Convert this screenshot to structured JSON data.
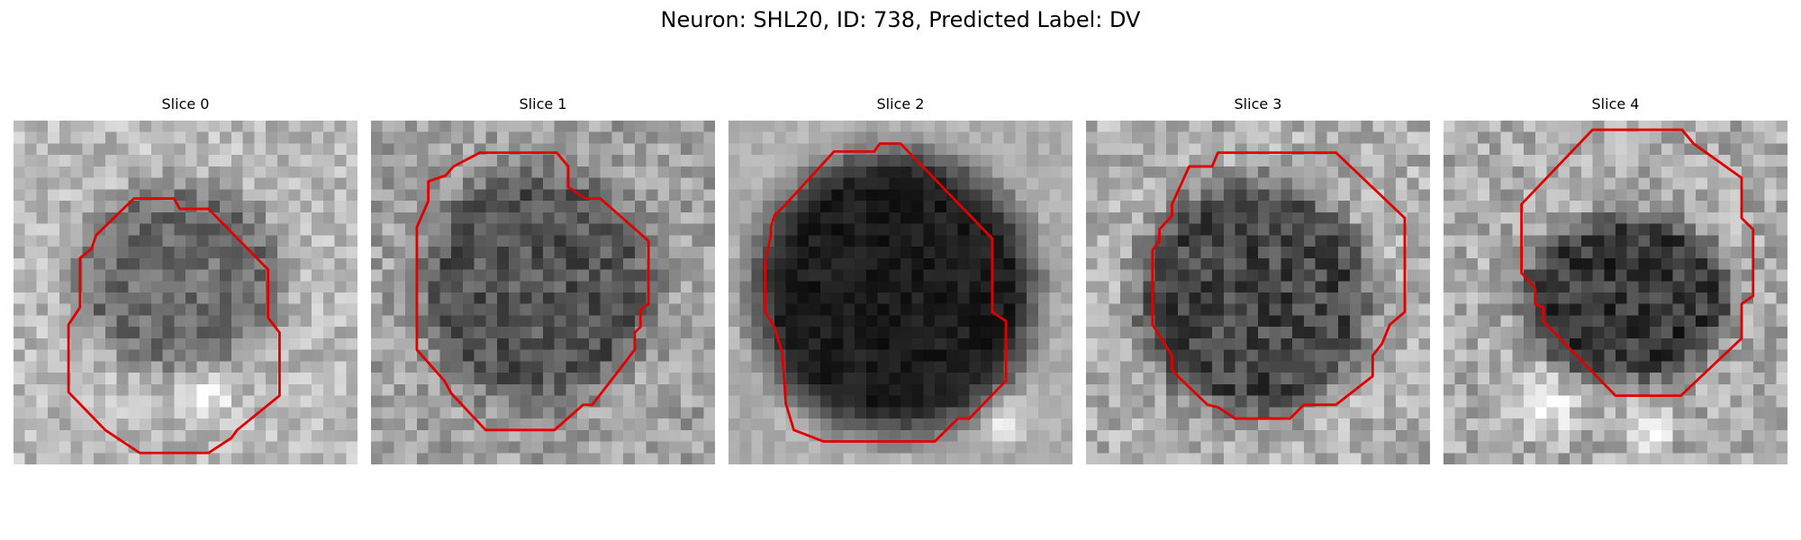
{
  "figure": {
    "title": "Neuron: SHL20, ID: 738, Predicted Label: DV"
  },
  "panels": [
    {
      "title": "Slice 0",
      "outline_color": "#e00000"
    },
    {
      "title": "Slice 1",
      "outline_color": "#e00000"
    },
    {
      "title": "Slice 2",
      "outline_color": "#e00000"
    },
    {
      "title": "Slice 3",
      "outline_color": "#e00000"
    },
    {
      "title": "Slice 4",
      "outline_color": "#e00000"
    }
  ]
}
